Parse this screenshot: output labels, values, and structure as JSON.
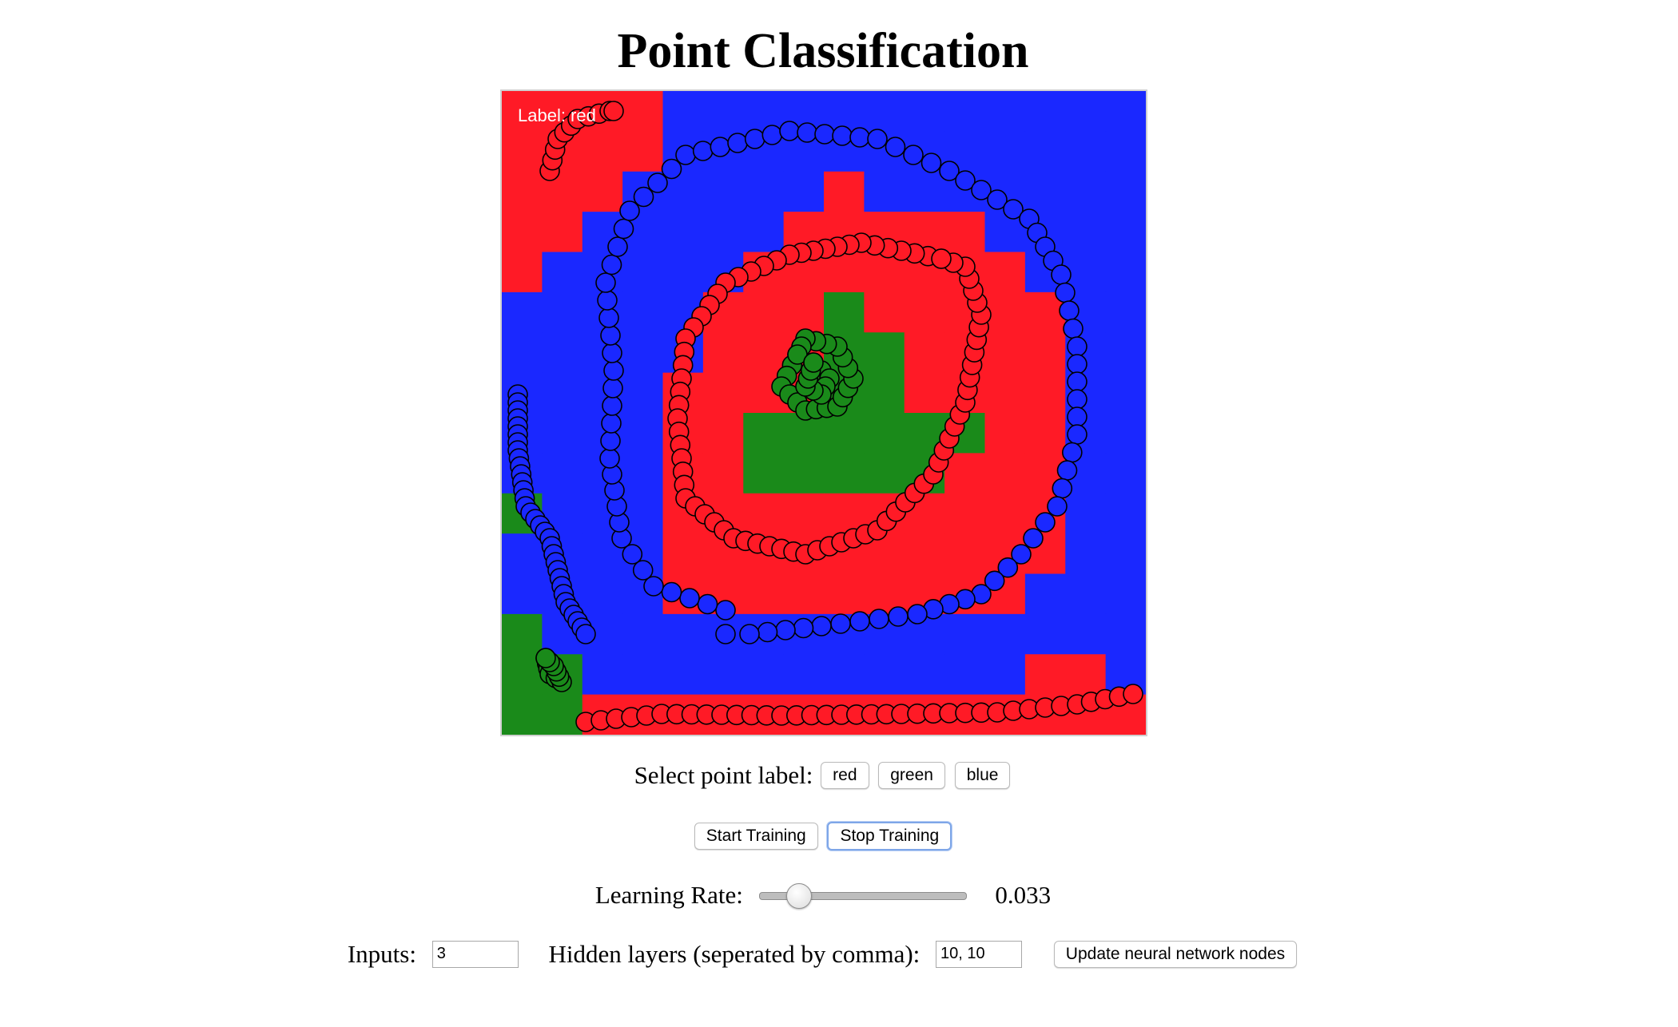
{
  "page": {
    "title": "Point Classification"
  },
  "canvas": {
    "label_text": "Label: red",
    "colors": {
      "red": "#ff1a26",
      "green": "#1a8a1a",
      "blue": "#1a28ff"
    },
    "grid_labels": [
      "RRRRBBBBBBBBBBBB",
      "RRRRBBBBBBBBBBBB",
      "RRRBBBBBRBBBBBBB",
      "RRBBBBBRRRRRBBBB",
      "RBBBBBRRRRRRRBBB",
      "BBBBBRRRGRRRRRBB",
      "BBBBBRRRGGRRRRBB",
      "BBBBRRRRGGRRRRBB",
      "BBBBRRGGGGGGRRBB",
      "BBBBRRGGGGGRRRBB",
      "GBBBRRRRRRRRRRBB",
      "BBBBRRRRRRRRRRBB",
      "BBBBRRRRRRRRRBBB",
      "GBBBBBBBBBBBBBBB",
      "GGBBBBBBBBBBBRRB",
      "GGRRRRRRRRRRRRRR"
    ]
  },
  "controls": {
    "select_label_text": "Select point label:",
    "label_buttons": [
      "red",
      "green",
      "blue"
    ],
    "start_button": "Start Training",
    "stop_button": "Stop Training",
    "learning_rate_label": "Learning Rate:",
    "learning_rate_value": "0.033",
    "learning_rate_fraction": 0.15,
    "inputs_label": "Inputs:",
    "inputs_value": "3",
    "hidden_layers_label": "Hidden layers (seperated by comma):",
    "hidden_layers_value": "10, 10",
    "update_button": "Update neural network nodes"
  }
}
